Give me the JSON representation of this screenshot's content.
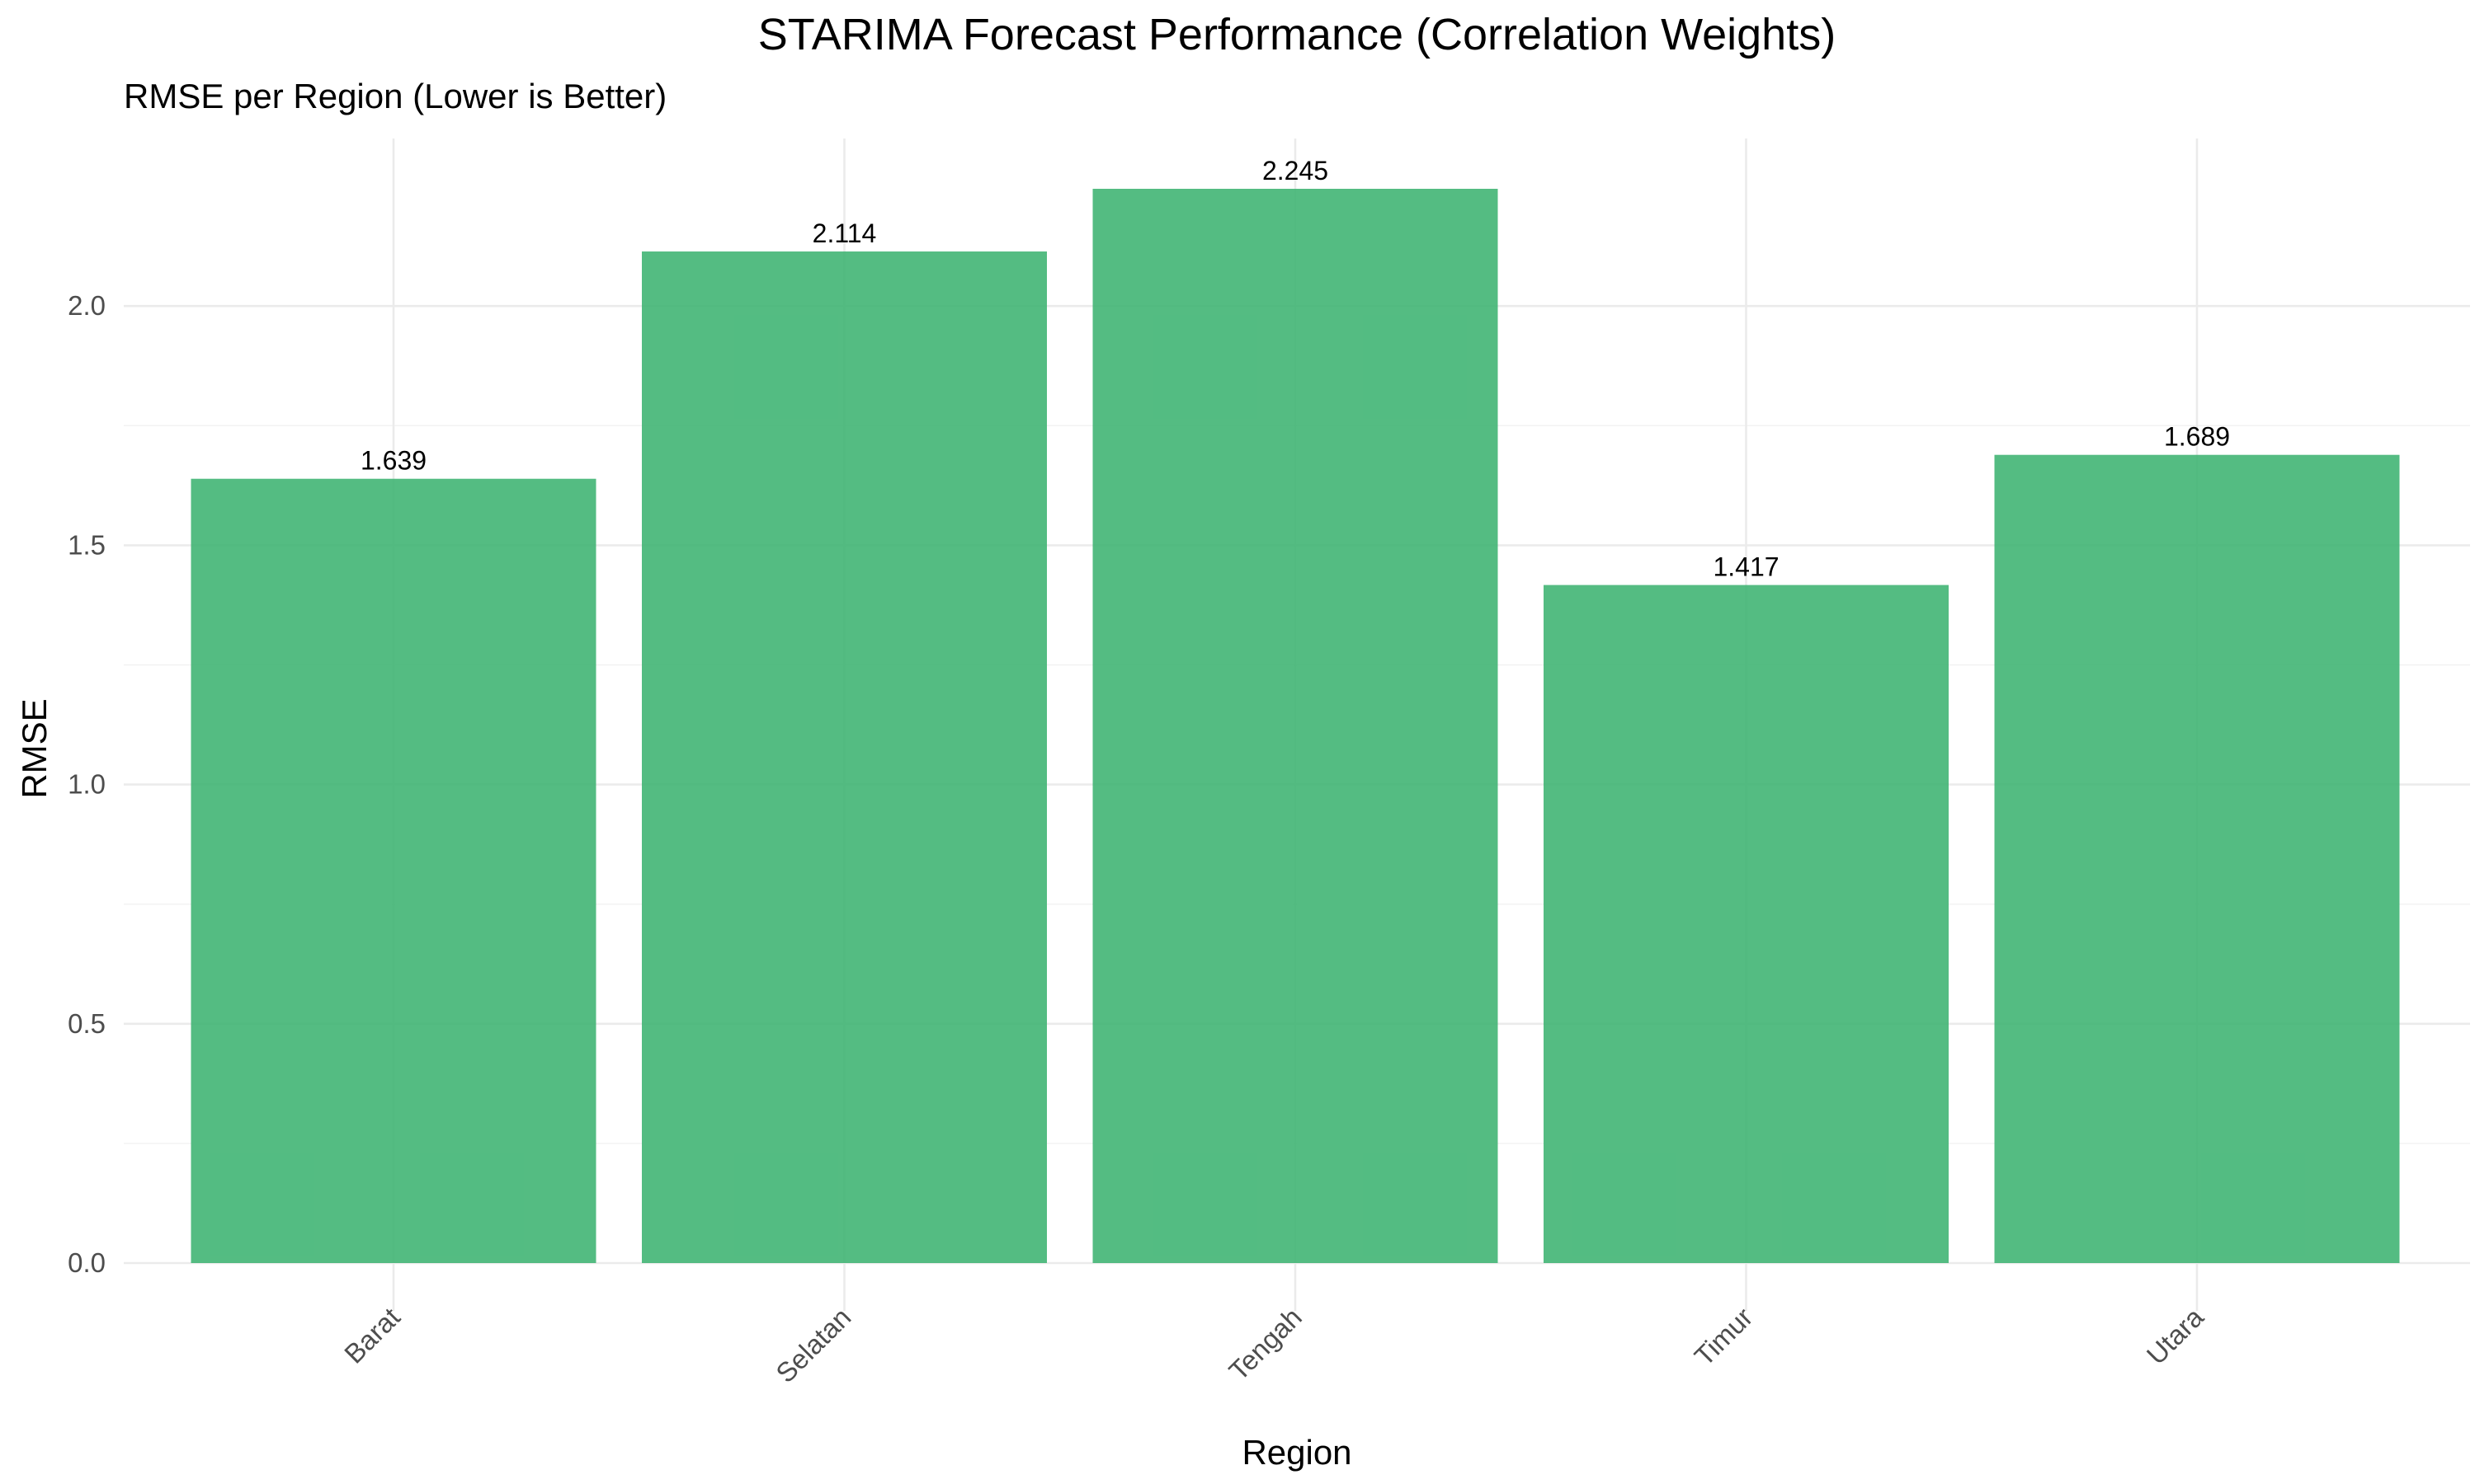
{
  "chart_data": {
    "type": "bar",
    "title": "STARIMA Forecast Performance (Correlation Weights)",
    "subtitle": "RMSE per Region (Lower is Better)",
    "xlabel": "Region",
    "ylabel": "RMSE",
    "categories": [
      "Barat",
      "Selatan",
      "Tengah",
      "Timur",
      "Utara"
    ],
    "values": [
      1.639,
      2.114,
      2.245,
      1.417,
      1.689
    ],
    "value_labels": [
      "1.639",
      "2.114",
      "2.245",
      "1.417",
      "1.689"
    ],
    "ylim": [
      0,
      2.245
    ],
    "yticks": [
      0.0,
      0.5,
      1.0,
      1.5,
      2.0
    ],
    "ytick_labels": [
      "0.0",
      "0.5",
      "1.0",
      "1.5",
      "2.0"
    ],
    "bar_color": "#3CB371",
    "grid": true,
    "legend": false
  }
}
